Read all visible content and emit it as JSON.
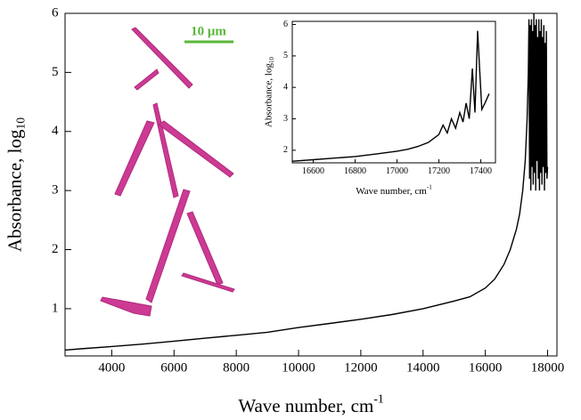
{
  "chart_data": [
    {
      "type": "line",
      "x_label": "Wave number, cm",
      "x_label_sup": "-1",
      "y_label": "Absorbance, log",
      "y_label_sub": "10",
      "annotation": "10 μm",
      "color": "#000000",
      "xlim": [
        2500,
        18300
      ],
      "ylim": [
        0.2,
        6
      ],
      "xticks": [
        4000,
        6000,
        8000,
        10000,
        12000,
        14000,
        16000,
        18000
      ],
      "yticks": [
        1,
        2,
        3,
        4,
        5,
        6
      ],
      "x": [
        2500,
        3000,
        4000,
        5000,
        6000,
        7000,
        8000,
        9000,
        10000,
        11000,
        12000,
        13000,
        14000,
        15000,
        15500,
        16000,
        16300,
        16600,
        16800,
        17000,
        17100,
        17200,
        17280,
        17340,
        17380,
        17400,
        17420,
        17440,
        17460,
        17480,
        17500,
        17520,
        17540,
        17560,
        17580,
        17600,
        17620,
        17640,
        17660,
        17680,
        17700,
        17720,
        17740,
        17760,
        17780,
        17800,
        17820,
        17840,
        17860,
        17880,
        17900,
        17920,
        17940,
        17960,
        17980,
        18000
      ],
      "values": [
        0.3,
        0.32,
        0.36,
        0.4,
        0.45,
        0.5,
        0.55,
        0.6,
        0.68,
        0.75,
        0.82,
        0.9,
        1.0,
        1.13,
        1.2,
        1.35,
        1.5,
        1.75,
        2.0,
        2.35,
        2.6,
        3.0,
        3.5,
        4.2,
        5.0,
        5.9,
        3.2,
        5.8,
        3.0,
        5.9,
        3.4,
        5.7,
        3.1,
        6.0,
        3.3,
        5.8,
        3.0,
        5.9,
        3.5,
        5.6,
        3.2,
        5.9,
        3.0,
        5.7,
        3.3,
        5.9,
        3.1,
        5.6,
        3.4,
        5.8,
        3.0,
        5.5,
        3.3,
        5.7,
        3.2,
        3.4
      ]
    },
    {
      "type": "line",
      "x_label": "Wave number, cm",
      "x_label_sup": "-1",
      "y_label": "Absorbance, log",
      "y_label_sub": "10",
      "color": "#000000",
      "xlim": [
        16500,
        17470
      ],
      "ylim": [
        1.6,
        6.1
      ],
      "xticks": [
        16600,
        16800,
        17000,
        17200,
        17400
      ],
      "yticks": [
        2,
        3,
        4,
        5,
        6
      ],
      "x": [
        16500,
        16600,
        16700,
        16800,
        16900,
        17000,
        17050,
        17100,
        17150,
        17200,
        17220,
        17240,
        17260,
        17280,
        17300,
        17315,
        17330,
        17345,
        17360,
        17372,
        17385,
        17395,
        17405,
        17420,
        17440
      ],
      "values": [
        1.65,
        1.7,
        1.75,
        1.8,
        1.88,
        1.97,
        2.03,
        2.12,
        2.25,
        2.5,
        2.8,
        2.55,
        3.0,
        2.7,
        3.2,
        2.9,
        3.5,
        3.0,
        4.6,
        3.2,
        5.8,
        4.5,
        3.3,
        3.5,
        3.8
      ]
    }
  ]
}
